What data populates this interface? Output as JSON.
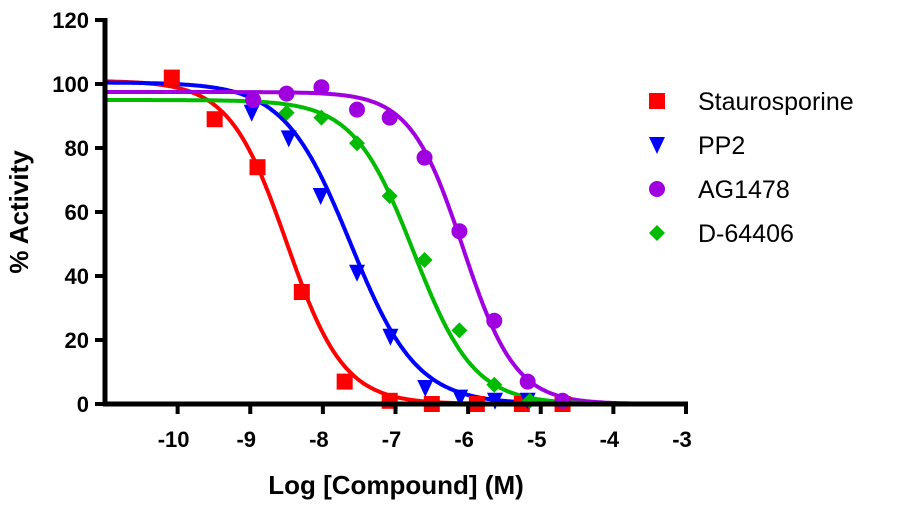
{
  "chart_data": {
    "type": "scatter",
    "title": "",
    "xlabel": "Log [Compound] (M)",
    "ylabel": "% Activity",
    "xlim": [
      -11,
      -3
    ],
    "ylim": [
      0,
      120
    ],
    "xticks": [
      -10,
      -9,
      -8,
      -7,
      -6,
      -5,
      -4,
      -3
    ],
    "yticks": [
      0,
      20,
      40,
      60,
      80,
      100,
      120
    ],
    "grid": false,
    "legend_position": "right",
    "series": [
      {
        "name": "Staurosporine",
        "color": "#ff0000",
        "marker": "square",
        "x": [
          -10.08,
          -9.49,
          -8.9,
          -8.29,
          -7.7,
          -7.08,
          -6.5,
          -5.88,
          -5.26,
          -4.7
        ],
        "y": [
          102,
          89,
          74,
          35,
          7,
          1,
          0,
          0,
          0,
          0
        ],
        "fit": {
          "top": 101,
          "bottom": 0,
          "logIC50": -8.5,
          "hill": 1.1
        }
      },
      {
        "name": "PP2",
        "color": "#0000ff",
        "marker": "triangle-down",
        "x": [
          -8.98,
          -8.47,
          -8.03,
          -7.53,
          -7.07,
          -6.59,
          -6.11,
          -5.63,
          -5.18
        ],
        "y": [
          91,
          83,
          65,
          41,
          21,
          5,
          2,
          1,
          1
        ],
        "fit": {
          "top": 100.5,
          "bottom": 0,
          "logIC50": -7.62,
          "hill": 0.95
        }
      },
      {
        "name": "AG1478",
        "color": "#a000e0",
        "marker": "circle",
        "x": [
          -8.96,
          -8.5,
          -8.02,
          -7.53,
          -7.08,
          -6.6,
          -6.12,
          -5.64,
          -5.18,
          -4.7
        ],
        "y": [
          95,
          97,
          99,
          92,
          89.5,
          77,
          54,
          26,
          7,
          1
        ],
        "fit": {
          "top": 97.5,
          "bottom": 0,
          "logIC50": -6.07,
          "hill": 1.2
        }
      },
      {
        "name": "D-64406",
        "color": "#00bb00",
        "marker": "diamond",
        "x": [
          -8.5,
          -8.02,
          -7.53,
          -7.08,
          -6.6,
          -6.12,
          -5.64,
          -5.15
        ],
        "y": [
          91,
          89.5,
          81.5,
          65,
          45,
          23,
          6,
          1
        ],
        "fit": {
          "top": 95,
          "bottom": 0,
          "logIC50": -6.75,
          "hill": 1.05
        }
      }
    ]
  }
}
